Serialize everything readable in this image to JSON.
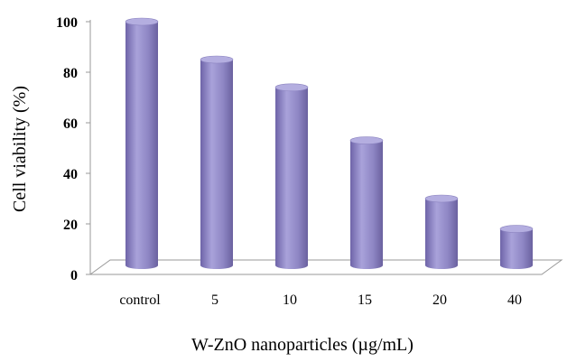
{
  "chart_data": {
    "type": "bar",
    "categories": [
      "control",
      "5",
      "10",
      "15",
      "20",
      "40"
    ],
    "values": [
      100,
      85,
      74,
      53,
      30,
      18
    ],
    "xlabel": "W-ZnO nanoparticles (µg/mL)",
    "ylabel": "Cell viability (%)",
    "ylim": [
      0,
      100
    ],
    "yticks": [
      "0",
      "20",
      "40",
      "60",
      "80",
      "100"
    ],
    "bar_style": "3d-cylinder",
    "bar_color": "#8e86c4",
    "grid": false,
    "legend": "none"
  }
}
